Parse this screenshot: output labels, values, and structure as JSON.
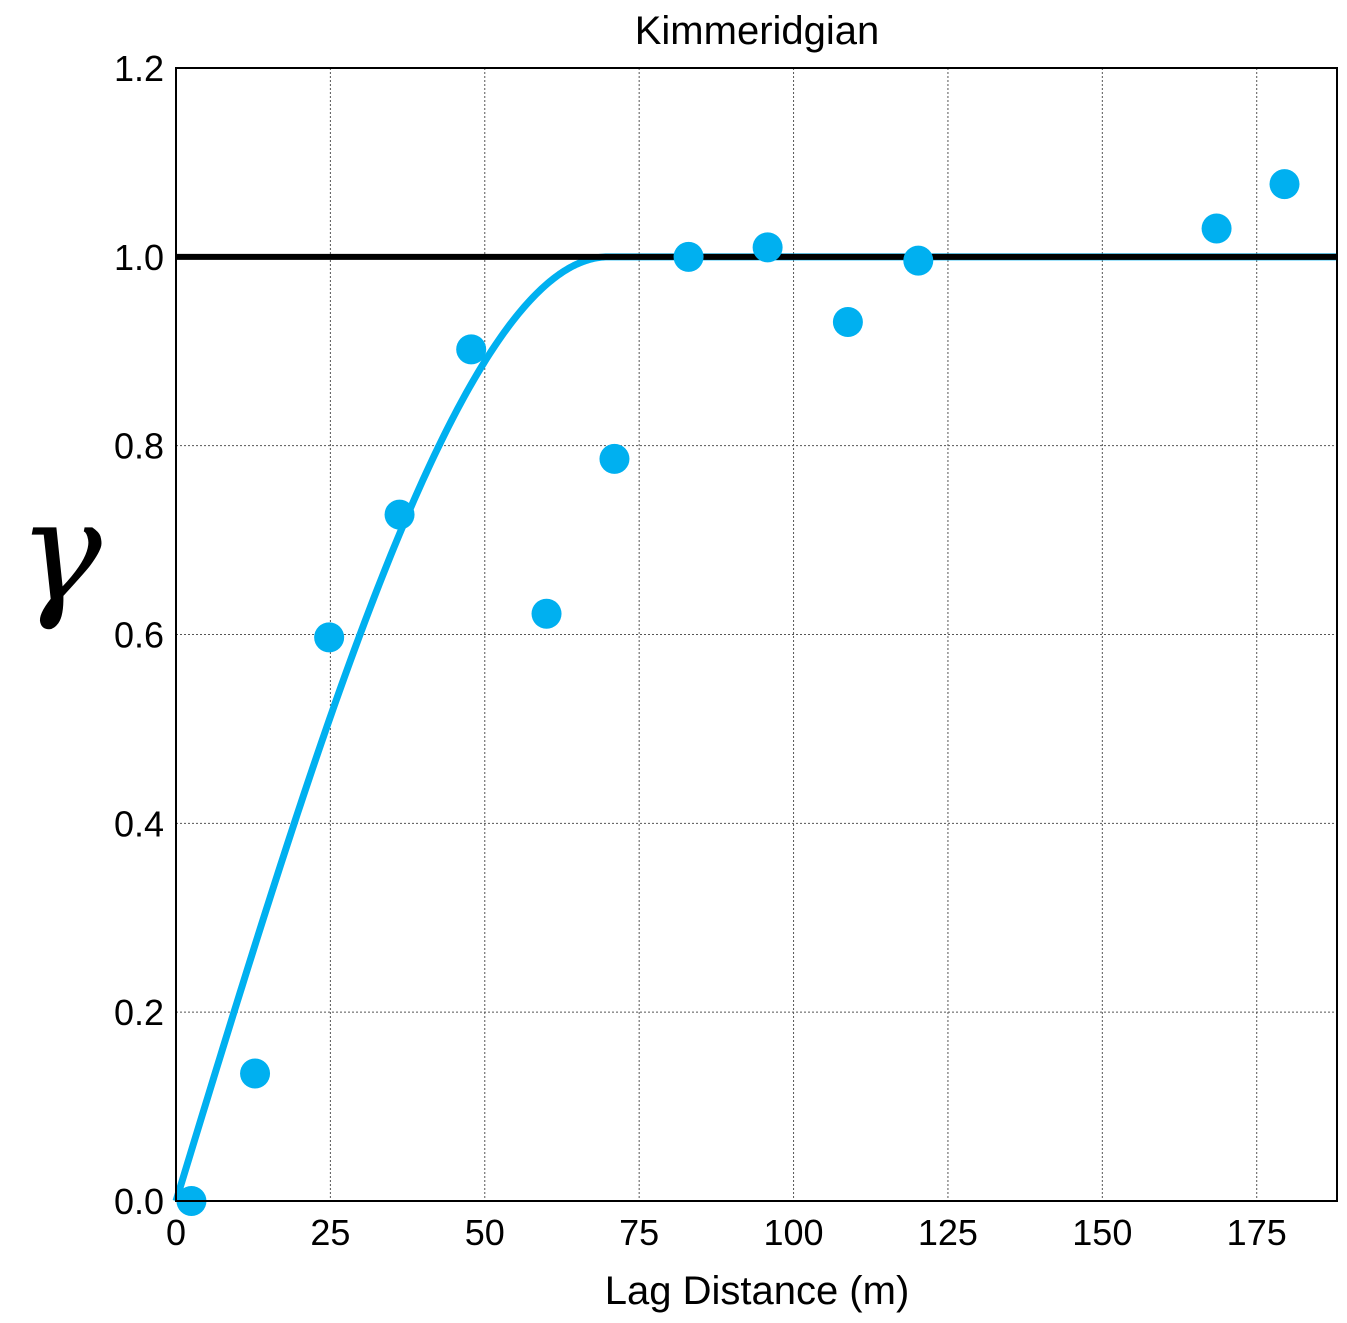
{
  "chart_data": {
    "type": "scatter",
    "title": "Kimmeridgian",
    "xlabel": "Lag Distance (m)",
    "ylabel": "γ",
    "xlim": [
      0,
      188
    ],
    "ylim": [
      0,
      1.2
    ],
    "xticks": [
      0,
      25,
      50,
      75,
      100,
      125,
      150,
      175
    ],
    "yticks": [
      0.0,
      0.2,
      0.4,
      0.6,
      0.8,
      1.0,
      1.2
    ],
    "ytick_labels": [
      "0.0",
      "0.2",
      "0.4",
      "0.6",
      "0.8",
      "1.0",
      "1.2"
    ],
    "grid": true,
    "sill": 1.0,
    "range": 70,
    "model": "spherical",
    "colors": {
      "points": "#00b0f0",
      "model_line": "#00b0f0",
      "sill_line": "#000000"
    },
    "series": [
      {
        "kind": "points",
        "x": [
          2.5,
          12.8,
          24.8,
          36.2,
          47.8,
          60.0,
          71.0,
          83.0,
          95.8,
          108.8,
          120.2,
          168.5,
          179.5
        ],
        "y": [
          0.0,
          0.135,
          0.597,
          0.727,
          0.902,
          0.622,
          0.786,
          1.0,
          1.01,
          0.931,
          0.996,
          1.03,
          1.077
        ]
      }
    ]
  }
}
